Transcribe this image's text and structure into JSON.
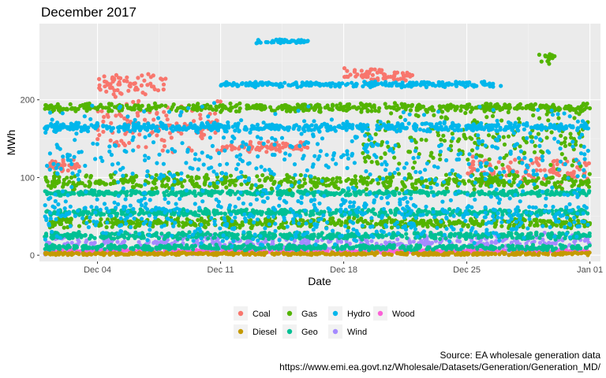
{
  "chart_data": {
    "type": "scatter",
    "title": "December 2017",
    "xlabel": "Date",
    "ylabel": "MWh",
    "x_range": [
      "2017-11-29",
      "2018-01-01"
    ],
    "x_ticks": [
      {
        "label": "Dec 04",
        "day": 4
      },
      {
        "label": "Dec 11",
        "day": 11
      },
      {
        "label": "Dec 18",
        "day": 18
      },
      {
        "label": "Dec 25",
        "day": 25
      },
      {
        "label": "Jan 01",
        "day": 32
      }
    ],
    "ylim": [
      -8,
      298
    ],
    "y_ticks": [
      0,
      100,
      200
    ],
    "grid": true,
    "legend_position": "bottom",
    "series": [
      {
        "name": "Coal",
        "color": "#F8766D",
        "levels": [
          {
            "from": 1,
            "to": 3,
            "value": 115,
            "spread": 12
          },
          {
            "from": 4,
            "to": 8,
            "value": 220,
            "spread": 18
          },
          {
            "from": 4,
            "to": 11,
            "value": 165,
            "spread": 40
          },
          {
            "from": 11,
            "to": 16,
            "value": 140,
            "spread": 8
          },
          {
            "from": 18,
            "to": 22,
            "value": 232,
            "spread": 10
          },
          {
            "from": 25,
            "to": 32,
            "value": 110,
            "spread": 20
          }
        ]
      },
      {
        "name": "Diesel",
        "color": "#C49A00",
        "levels": [
          {
            "from": 1,
            "to": 32,
            "value": 2,
            "spread": 2
          }
        ]
      },
      {
        "name": "Gas",
        "color": "#53B400",
        "levels": [
          {
            "from": 1,
            "to": 32,
            "value": 190,
            "spread": 6
          },
          {
            "from": 1,
            "to": 32,
            "value": 95,
            "spread": 12
          },
          {
            "from": 1,
            "to": 32,
            "value": 42,
            "spread": 8
          },
          {
            "from": 19,
            "to": 32,
            "value": 150,
            "spread": 45
          },
          {
            "from": 29,
            "to": 30,
            "value": 255,
            "spread": 10
          }
        ]
      },
      {
        "name": "Geo",
        "color": "#00C094",
        "levels": [
          {
            "from": 1,
            "to": 32,
            "value": 80,
            "spread": 4
          },
          {
            "from": 1,
            "to": 32,
            "value": 55,
            "spread": 5
          },
          {
            "from": 1,
            "to": 32,
            "value": 25,
            "spread": 5
          },
          {
            "from": 1,
            "to": 32,
            "value": 10,
            "spread": 4
          }
        ]
      },
      {
        "name": "Hydro",
        "color": "#00B6EB",
        "levels": [
          {
            "from": 1,
            "to": 32,
            "value": 165,
            "spread": 6
          },
          {
            "from": 1,
            "to": 32,
            "value": 130,
            "spread": 70
          },
          {
            "from": 1,
            "to": 32,
            "value": 50,
            "spread": 40
          },
          {
            "from": 11,
            "to": 27,
            "value": 220,
            "spread": 4
          },
          {
            "from": 13,
            "to": 16,
            "value": 275,
            "spread": 3
          }
        ]
      },
      {
        "name": "Wind",
        "color": "#A58AFF",
        "levels": [
          {
            "from": 1,
            "to": 32,
            "value": 15,
            "spread": 15
          }
        ]
      },
      {
        "name": "Wood",
        "color": "#FB61D7",
        "levels": [
          {
            "from": 1,
            "to": 32,
            "value": 5,
            "spread": 2
          }
        ]
      }
    ]
  },
  "caption": {
    "line1": "Source: EA wholesale generation data",
    "line2": "https://www.emi.ea.govt.nz/Wholesale/Datasets/Generation/Generation_MD/"
  }
}
